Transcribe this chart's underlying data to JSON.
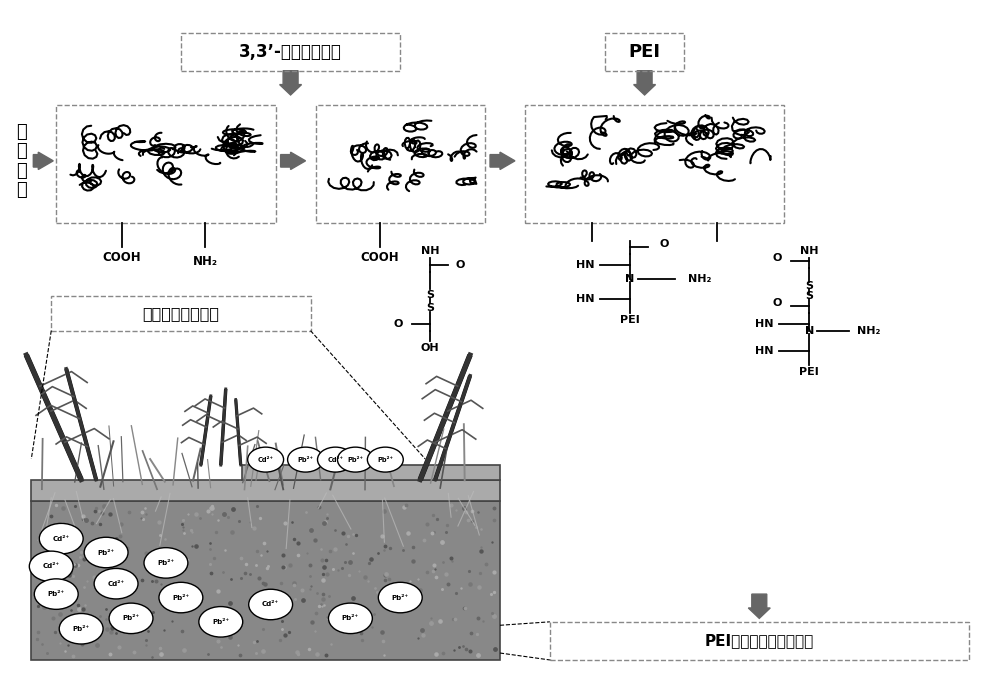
{
  "bg_color": "#ffffff",
  "fig_width": 10.0,
  "fig_height": 6.96,
  "label_mingiao": "明\n胶\n海\n绵",
  "label_33": "3,3’-二硫代二丙酸",
  "label_PEI": "PEI",
  "label_moni": "模拟污水灸溉系统",
  "label_PEI_jie": "PEI接枝的明胶海绵材料",
  "gray": "#666666",
  "dark": "#333333",
  "light_gray": "#aaaaaa"
}
